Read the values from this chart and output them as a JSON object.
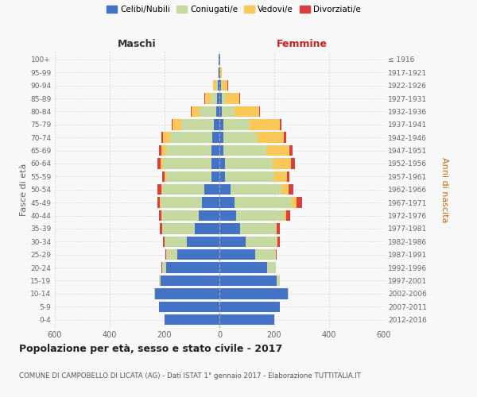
{
  "age_groups": [
    "0-4",
    "5-9",
    "10-14",
    "15-19",
    "20-24",
    "25-29",
    "30-34",
    "35-39",
    "40-44",
    "45-49",
    "50-54",
    "55-59",
    "60-64",
    "65-69",
    "70-74",
    "75-79",
    "80-84",
    "85-89",
    "90-94",
    "95-99",
    "100+"
  ],
  "birth_years": [
    "2012-2016",
    "2007-2011",
    "2002-2006",
    "1997-2001",
    "1992-1996",
    "1987-1991",
    "1982-1986",
    "1977-1981",
    "1972-1976",
    "1967-1971",
    "1962-1966",
    "1957-1961",
    "1952-1956",
    "1947-1951",
    "1942-1946",
    "1937-1941",
    "1932-1936",
    "1927-1931",
    "1922-1926",
    "1917-1921",
    "≤ 1916"
  ],
  "male_celibe": [
    200,
    220,
    235,
    215,
    195,
    155,
    120,
    90,
    75,
    65,
    55,
    30,
    30,
    28,
    25,
    20,
    12,
    8,
    5,
    3,
    2
  ],
  "male_coniugato": [
    0,
    1,
    2,
    5,
    15,
    40,
    80,
    120,
    135,
    150,
    155,
    165,
    175,
    165,
    155,
    120,
    60,
    25,
    8,
    2,
    1
  ],
  "male_vedovo": [
    0,
    0,
    0,
    0,
    0,
    0,
    0,
    0,
    1,
    2,
    3,
    5,
    10,
    18,
    25,
    30,
    30,
    20,
    10,
    2,
    0
  ],
  "male_divorziato": [
    0,
    0,
    0,
    0,
    1,
    2,
    5,
    8,
    8,
    10,
    12,
    8,
    10,
    10,
    8,
    5,
    3,
    2,
    0,
    0,
    0
  ],
  "female_celibe": [
    200,
    220,
    250,
    210,
    175,
    130,
    95,
    75,
    60,
    55,
    40,
    20,
    20,
    15,
    15,
    15,
    10,
    8,
    5,
    3,
    2
  ],
  "female_coniugato": [
    0,
    1,
    3,
    10,
    30,
    75,
    115,
    130,
    175,
    210,
    185,
    180,
    175,
    155,
    120,
    95,
    45,
    15,
    5,
    1,
    0
  ],
  "female_vedovo": [
    0,
    0,
    0,
    0,
    0,
    1,
    2,
    4,
    8,
    15,
    28,
    45,
    65,
    85,
    100,
    110,
    90,
    50,
    20,
    5,
    2
  ],
  "female_divorziato": [
    0,
    0,
    0,
    1,
    2,
    3,
    8,
    10,
    15,
    20,
    18,
    10,
    15,
    12,
    8,
    5,
    3,
    2,
    1,
    0,
    0
  ],
  "colors": {
    "celibe": "#4472C4",
    "coniugato": "#C5D9A0",
    "vedovo": "#FAC858",
    "divorziato": "#D84040"
  },
  "title": "Popolazione per età, sesso e stato civile - 2017",
  "subtitle": "COMUNE DI CAMPOBELLO DI LICATA (AG) - Dati ISTAT 1° gennaio 2017 - Elaborazione TUTTITALIA.IT",
  "xlabel_left": "Maschi",
  "xlabel_right": "Femmine",
  "ylabel_left": "Fasce di età",
  "ylabel_right": "Anni di nascita",
  "xlim": 600,
  "bg_color": "#f8f8f8",
  "grid_color": "#cccccc"
}
